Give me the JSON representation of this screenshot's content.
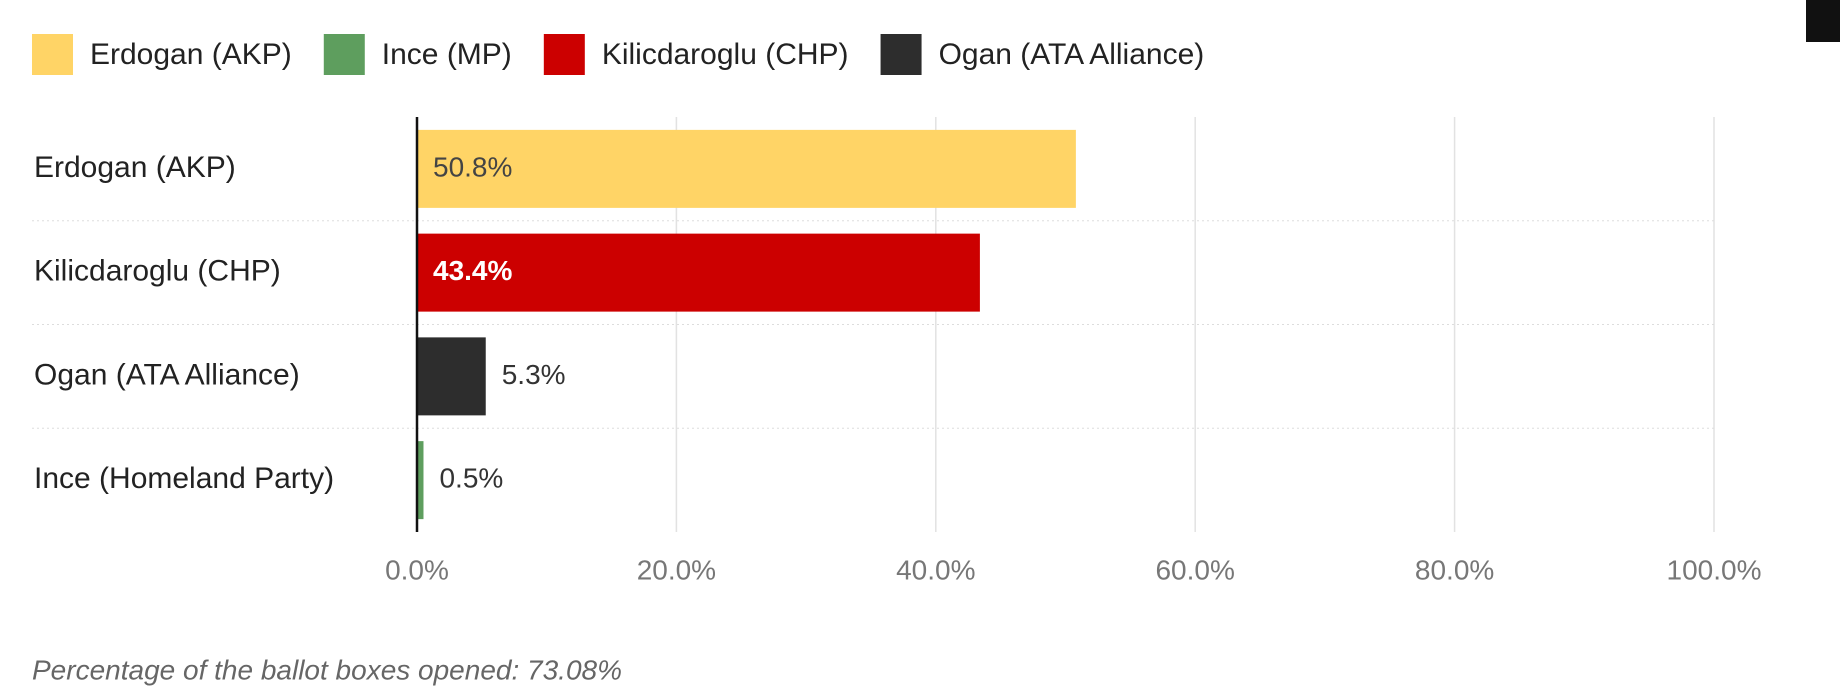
{
  "chart_data": {
    "type": "bar",
    "orientation": "horizontal",
    "categories": [
      "Erdogan (AKP)",
      "Kilicdaroglu (CHP)",
      "Ogan (ATA Alliance)",
      "Ince (Homeland Party)"
    ],
    "series": [
      {
        "name": "Erdogan (AKP)",
        "color": "#ffd466",
        "values": [
          50.8,
          null,
          null,
          null
        ],
        "value_labels": [
          "50.8%",
          null,
          null,
          null
        ]
      },
      {
        "name": "Ince (MP)",
        "color": "#5e9e5e",
        "values": [
          null,
          null,
          null,
          0.5
        ],
        "value_labels": [
          null,
          null,
          null,
          "0.5%"
        ]
      },
      {
        "name": "Kilicdaroglu (CHP)",
        "color": "#cc0000",
        "values": [
          null,
          43.4,
          null,
          null
        ],
        "value_labels": [
          null,
          "43.4%",
          null,
          null
        ]
      },
      {
        "name": "Ogan (ATA Alliance)",
        "color": "#2d2d2d",
        "values": [
          null,
          null,
          5.3,
          null
        ],
        "value_labels": [
          null,
          null,
          "5.3%",
          null
        ]
      }
    ],
    "xlim": [
      0,
      100
    ],
    "xticks": [
      {
        "value": 0,
        "label": "0.0%"
      },
      {
        "value": 20,
        "label": "20.0%"
      },
      {
        "value": 40,
        "label": "40.0%"
      },
      {
        "value": 60,
        "label": "60.0%"
      },
      {
        "value": 80,
        "label": "80.0%"
      },
      {
        "value": 100,
        "label": "100.0%"
      }
    ],
    "grid": true,
    "legend": "top",
    "note": "Percentage of the ballot boxes opened: 73.08%"
  }
}
